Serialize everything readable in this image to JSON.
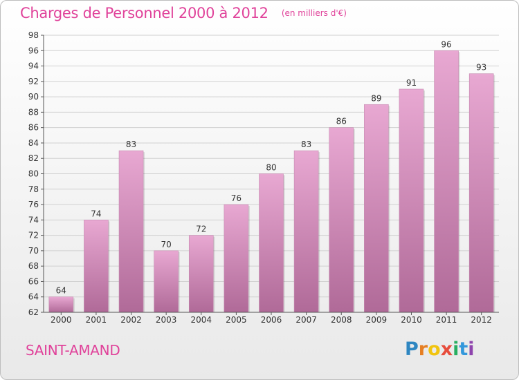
{
  "header": {
    "title": "Charges de Personnel 2000 à 2012",
    "subtitle": "(en milliers d'€)"
  },
  "location": "SAINT-AMAND",
  "logo": {
    "letters": [
      "P",
      "r",
      "o",
      "x",
      "i",
      "t",
      "i"
    ],
    "colors": [
      "#2e86c1",
      "#e67e22",
      "#f1c40f",
      "#e74c3c",
      "#27ae60",
      "#3498db",
      "#8e44ad"
    ]
  },
  "chart_data": {
    "type": "bar",
    "title": "Charges de Personnel 2000 à 2012",
    "categories": [
      "2000",
      "2001",
      "2002",
      "2003",
      "2004",
      "2005",
      "2006",
      "2007",
      "2008",
      "2009",
      "2010",
      "2011",
      "2012"
    ],
    "values": [
      64,
      74,
      83,
      70,
      72,
      76,
      80,
      83,
      86,
      89,
      91,
      96,
      93
    ],
    "ylim": [
      62,
      98
    ],
    "yticks": [
      62,
      64,
      66,
      68,
      70,
      72,
      74,
      76,
      78,
      80,
      82,
      84,
      86,
      88,
      90,
      92,
      94,
      96,
      98
    ],
    "grid": true,
    "colors": {
      "bar_top": "#e8a8d2",
      "bar_bottom": "#b06a98",
      "grid": "#d0d0d0",
      "axis": "#555555"
    }
  }
}
